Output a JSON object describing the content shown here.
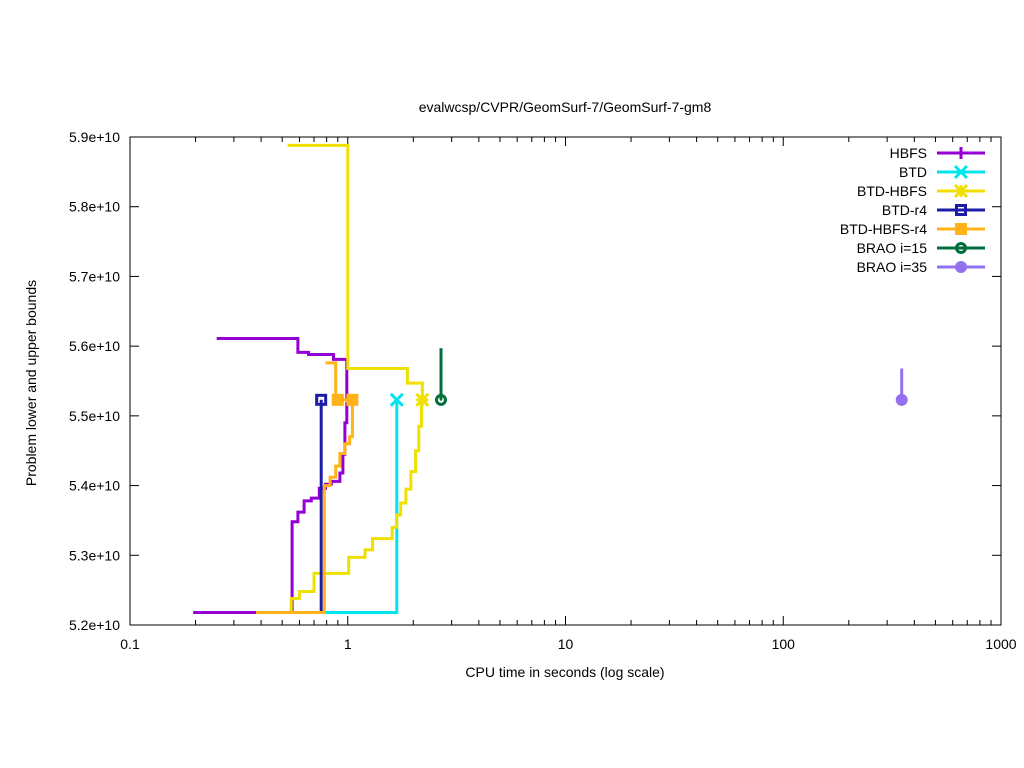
{
  "chart_data": {
    "type": "line",
    "title": "evalwcsp/CVPR/GeomSurf-7/GeomSurf-7-gm8",
    "xlabel": "CPU time in seconds (log scale)",
    "ylabel": "Problem lower and upper bounds",
    "xscale": "log",
    "xlim": [
      0.1,
      1000
    ],
    "ylim": [
      52000000000,
      59000000000
    ],
    "xticks": [
      {
        "value": 0.1,
        "label": "0.1"
      },
      {
        "value": 1,
        "label": "1"
      },
      {
        "value": 10,
        "label": "10"
      },
      {
        "value": 100,
        "label": "100"
      },
      {
        "value": 1000,
        "label": "1000"
      }
    ],
    "yticks": [
      {
        "value": 52000000000,
        "label": "5.2e+10"
      },
      {
        "value": 53000000000,
        "label": "5.3e+10"
      },
      {
        "value": 54000000000,
        "label": "5.4e+10"
      },
      {
        "value": 55000000000,
        "label": "5.5e+10"
      },
      {
        "value": 56000000000,
        "label": "5.6e+10"
      },
      {
        "value": 57000000000,
        "label": "5.7e+10"
      },
      {
        "value": 58000000000,
        "label": "5.8e+10"
      },
      {
        "value": 59000000000,
        "label": "5.9e+10"
      }
    ],
    "grid": false,
    "legend_position": "top-right",
    "series": [
      {
        "name": "HBFS",
        "color": "#9400d3",
        "marker": "plus",
        "lines": [
          [
            [
              0.195,
              52180000000
            ],
            [
              0.555,
              52180000000
            ],
            [
              0.555,
              53480000000
            ],
            [
              0.59,
              53480000000
            ],
            [
              0.59,
              53620000000
            ],
            [
              0.63,
              53620000000
            ],
            [
              0.63,
              53780000000
            ],
            [
              0.68,
              53780000000
            ],
            [
              0.68,
              53820000000
            ],
            [
              0.74,
              53820000000
            ],
            [
              0.74,
              53960000000
            ],
            [
              0.79,
              53960000000
            ],
            [
              0.79,
              54020000000
            ],
            [
              0.84,
              54020000000
            ],
            [
              0.84,
              54060000000
            ],
            [
              0.92,
              54060000000
            ],
            [
              0.92,
              54180000000
            ],
            [
              0.95,
              54180000000
            ],
            [
              0.95,
              54450000000
            ],
            [
              0.97,
              54450000000
            ],
            [
              0.97,
              54900000000
            ],
            [
              0.99,
              54900000000
            ],
            [
              0.99,
              55200000000
            ]
          ],
          [
            [
              0.25,
              56110000000
            ],
            [
              0.59,
              56110000000
            ],
            [
              0.59,
              55910000000
            ],
            [
              0.66,
              55910000000
            ],
            [
              0.66,
              55880000000
            ],
            [
              0.86,
              55880000000
            ],
            [
              0.86,
              55810000000
            ],
            [
              0.99,
              55810000000
            ],
            [
              0.99,
              55230000000
            ]
          ]
        ],
        "points": []
      },
      {
        "name": "BTD",
        "color": "#00e5ee",
        "marker": "cross",
        "lines": [
          [
            [
              0.76,
              52180000000
            ],
            [
              1.68,
              52180000000
            ],
            [
              1.68,
              55230000000
            ]
          ]
        ],
        "points": [
          [
            1.68,
            55230000000
          ]
        ]
      },
      {
        "name": "BTD-HBFS",
        "color": "#f0e000",
        "marker": "star",
        "lines": [
          [
            [
              0.53,
              58880000000
            ],
            [
              1.0,
              58880000000
            ],
            [
              1.0,
              55680000000
            ],
            [
              1.88,
              55680000000
            ],
            [
              1.88,
              55470000000
            ],
            [
              2.2,
              55470000000
            ],
            [
              2.2,
              55230000000
            ]
          ],
          [
            [
              0.38,
              52180000000
            ],
            [
              0.55,
              52180000000
            ],
            [
              0.55,
              52380000000
            ],
            [
              0.6,
              52380000000
            ],
            [
              0.6,
              52480000000
            ],
            [
              0.7,
              52480000000
            ],
            [
              0.7,
              52740000000
            ],
            [
              1.01,
              52740000000
            ],
            [
              1.01,
              52970000000
            ],
            [
              1.2,
              52970000000
            ],
            [
              1.2,
              53080000000
            ],
            [
              1.3,
              53080000000
            ],
            [
              1.3,
              53240000000
            ],
            [
              1.6,
              53240000000
            ],
            [
              1.6,
              53400000000
            ],
            [
              1.68,
              53400000000
            ],
            [
              1.68,
              53580000000
            ],
            [
              1.75,
              53580000000
            ],
            [
              1.75,
              53750000000
            ],
            [
              1.85,
              53750000000
            ],
            [
              1.85,
              53950000000
            ],
            [
              1.95,
              53950000000
            ],
            [
              1.95,
              54200000000
            ],
            [
              2.05,
              54200000000
            ],
            [
              2.05,
              54500000000
            ],
            [
              2.12,
              54500000000
            ],
            [
              2.12,
              54850000000
            ],
            [
              2.18,
              54850000000
            ],
            [
              2.18,
              55230000000
            ]
          ]
        ],
        "points": [
          [
            2.2,
            55230000000
          ]
        ]
      },
      {
        "name": "BTD-r4",
        "color": "#1c1ca8",
        "marker": "square-open",
        "lines": [
          [
            [
              0.755,
              52180000000
            ],
            [
              0.755,
              55230000000
            ]
          ]
        ],
        "points": [
          [
            0.755,
            55230000000
          ]
        ]
      },
      {
        "name": "BTD-HBFS-r4",
        "color": "#ffb319",
        "marker": "square-filled",
        "lines": [
          [
            [
              0.79,
              55760000000
            ],
            [
              0.88,
              55760000000
            ],
            [
              0.88,
              55230000000
            ],
            [
              1.05,
              55230000000
            ]
          ],
          [
            [
              0.38,
              52180000000
            ],
            [
              0.78,
              52180000000
            ],
            [
              0.78,
              54000000000
            ],
            [
              0.83,
              54000000000
            ],
            [
              0.83,
              54120000000
            ],
            [
              0.88,
              54120000000
            ],
            [
              0.88,
              54280000000
            ],
            [
              0.92,
              54280000000
            ],
            [
              0.92,
              54460000000
            ],
            [
              0.97,
              54460000000
            ],
            [
              0.97,
              54600000000
            ],
            [
              1.02,
              54600000000
            ],
            [
              1.02,
              54700000000
            ],
            [
              1.05,
              54700000000
            ],
            [
              1.05,
              55230000000
            ]
          ]
        ],
        "points": [
          [
            0.9,
            55230000000
          ],
          [
            1.05,
            55230000000
          ]
        ]
      },
      {
        "name": "BRAO i=15",
        "color": "#006f3c",
        "marker": "circle-dot",
        "lines": [
          [
            [
              2.68,
              55970000000
            ],
            [
              2.68,
              55230000000
            ]
          ]
        ],
        "points": [
          [
            2.68,
            55230000000
          ]
        ]
      },
      {
        "name": "BRAO i=35",
        "color": "#9370ee",
        "marker": "circle-filled",
        "lines": [
          [
            [
              350,
              55680000000
            ],
            [
              350,
              55230000000
            ]
          ]
        ],
        "points": [
          [
            350,
            55230000000
          ]
        ]
      }
    ]
  }
}
